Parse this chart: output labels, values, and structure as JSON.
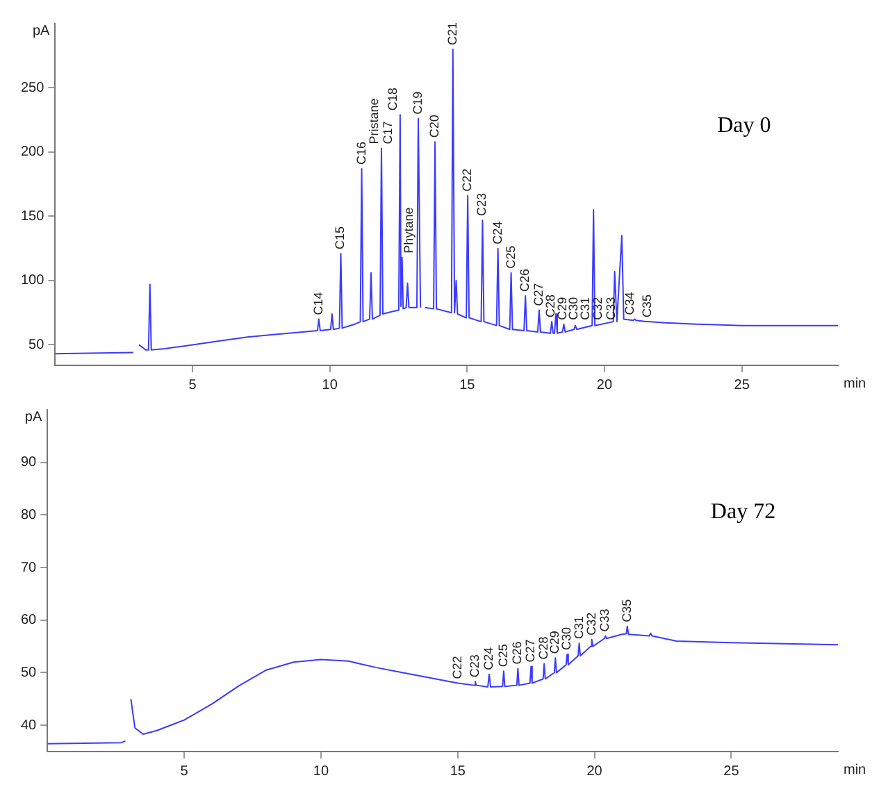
{
  "chart_data": [
    {
      "type": "line",
      "ylabel": "pA",
      "xlabel": "min",
      "xlim": [
        0,
        28.5
      ],
      "ylim": [
        34,
        300
      ],
      "xticks": [
        5,
        10,
        15,
        20,
        25
      ],
      "yticks": [
        50,
        100,
        150,
        200,
        250
      ],
      "grid": false,
      "legend": false,
      "marker": "none",
      "line_style": "solid",
      "series": [
        {
          "color": "#3b3bff",
          "x": [
            0,
            2.85,
            2.95,
            3.05,
            3.3,
            3.4,
            3.45,
            3.5,
            4,
            5,
            6,
            7,
            8,
            9,
            9.55,
            9.6,
            9.65,
            10.03,
            10.08,
            10.13,
            10.35,
            10.4,
            10.45,
            10.9,
            11.11,
            11.16,
            11.21,
            11.45,
            11.5,
            11.55,
            11.83,
            11.88,
            11.93,
            12.3,
            12.51,
            12.56,
            12.59,
            12.63,
            12.67,
            12.78,
            12.83,
            12.88,
            13.17,
            13.22,
            13.3,
            13.4,
            13.46,
            13.78,
            13.83,
            13.88,
            14.43,
            14.48,
            14.54,
            14.6,
            14.65,
            14.97,
            15.02,
            15.07,
            15.51,
            15.56,
            15.61,
            16.07,
            16.12,
            16.17,
            16.55,
            16.6,
            16.65,
            17.07,
            17.12,
            17.17,
            17.57,
            17.62,
            17.67,
            18.03,
            18.08,
            18.13,
            18.18,
            18.23,
            18.28,
            18.47,
            18.52,
            18.57,
            18.89,
            18.94,
            18.99,
            19.55,
            19.6,
            19.65,
            20.32,
            20.37,
            20.45,
            20.63,
            20.7,
            21.05,
            21.1,
            21.15,
            21.5,
            21.55,
            21.6,
            22.3,
            22.35,
            22.4,
            23.35,
            23.4,
            23.45,
            25,
            28.5
          ],
          "values": [
            43,
            44,
            null,
            50,
            46,
            46,
            97,
            46,
            47,
            50,
            53,
            56,
            58,
            60,
            61,
            70,
            61,
            62,
            74,
            62,
            63,
            121,
            63,
            66,
            68,
            187,
            68,
            70,
            106,
            70,
            73,
            203,
            74,
            76,
            77,
            229,
            80,
            118,
            78,
            79,
            98,
            79,
            79,
            226,
            79,
            null,
            79,
            78,
            208,
            78,
            75,
            280,
            75,
            100,
            74,
            71,
            166,
            71,
            68,
            147,
            68,
            65,
            125,
            65,
            62,
            106,
            62,
            61,
            88,
            61,
            60,
            77,
            60,
            59,
            68,
            59,
            59,
            74,
            59,
            60,
            66,
            60,
            62,
            65,
            62,
            65,
            155,
            65,
            68,
            107,
            68,
            135,
            70,
            69,
            70,
            69,
            68,
            68,
            68,
            67,
            67,
            67,
            66,
            66,
            66,
            65,
            65
          ]
        }
      ],
      "annotations": [
        "Day 0",
        {
          "text": "C14",
          "x": 9.6,
          "y": 70
        },
        {
          "text": "C15",
          "x": 10.4,
          "y": 121
        },
        {
          "text": "C16",
          "x": 11.16,
          "y": 187
        },
        {
          "text": "Pristane",
          "x": 11.88,
          "y": 203
        },
        {
          "text": "C17",
          "x": 11.88,
          "y": 203
        },
        {
          "text": "C18",
          "x": 12.56,
          "y": 229
        },
        {
          "text": "Phytane",
          "x": 12.63,
          "y": 118
        },
        {
          "text": "C19",
          "x": 13.22,
          "y": 226
        },
        {
          "text": "C20",
          "x": 13.83,
          "y": 208
        },
        {
          "text": "C21",
          "x": 14.48,
          "y": 280
        },
        {
          "text": "C22",
          "x": 15.02,
          "y": 166
        },
        {
          "text": "C23",
          "x": 15.56,
          "y": 147
        },
        {
          "text": "C24",
          "x": 16.12,
          "y": 125
        },
        {
          "text": "C25",
          "x": 16.6,
          "y": 106
        },
        {
          "text": "C26",
          "x": 17.12,
          "y": 88
        },
        {
          "text": "C27",
          "x": 17.62,
          "y": 77
        },
        {
          "text": "C28",
          "x": 18.06,
          "y": 68
        },
        {
          "text": "C29",
          "x": 18.49,
          "y": 66
        },
        {
          "text": "C30",
          "x": 18.89,
          "y": 66
        },
        {
          "text": "C31",
          "x": 19.33,
          "y": 66
        },
        {
          "text": "C32",
          "x": 19.78,
          "y": 66
        },
        {
          "text": "C33",
          "x": 20.26,
          "y": 66
        },
        {
          "text": "C34",
          "x": 20.94,
          "y": 70
        },
        {
          "text": "C35",
          "x": 21.58,
          "y": 68
        }
      ]
    },
    {
      "type": "line",
      "ylabel": "pA",
      "xlabel": "min",
      "xlim": [
        0,
        28.9
      ],
      "ylim": [
        35,
        100
      ],
      "xticks": [
        5,
        10,
        15,
        20,
        25
      ],
      "yticks": [
        40,
        50,
        60,
        70,
        80,
        90
      ],
      "grid": false,
      "legend": false,
      "marker": "none",
      "line_style": "solid",
      "series": [
        {
          "color": "#3b3bff",
          "x": [
            0,
            2.7,
            2.85,
            2.9,
            2.95,
            3.05,
            3.2,
            3.5,
            4,
            5,
            6,
            7,
            8,
            9,
            10,
            11,
            12,
            13,
            14,
            15,
            15.6,
            15.64,
            15.68,
            16.1,
            16.15,
            16.2,
            16.64,
            16.68,
            16.72,
            17.16,
            17.2,
            17.24,
            17.64,
            17.68,
            17.72,
            18.12,
            18.16,
            18.2,
            18.53,
            18.57,
            18.61,
            18.96,
            19.0,
            19.04,
            19.4,
            19.44,
            19.48,
            19.86,
            19.9,
            19.94,
            20.36,
            20.4,
            20.44,
            21.0,
            21.16,
            21.2,
            21.24,
            22.0,
            22.05,
            22.1,
            23,
            25,
            28.9
          ],
          "values": [
            36.5,
            36.7,
            37,
            null,
            null,
            45,
            39.5,
            38.3,
            39,
            41,
            44,
            47.5,
            50.5,
            52,
            52.5,
            52.2,
            51,
            50,
            49,
            48,
            47.6,
            48.3,
            47.6,
            47.3,
            49.7,
            47.3,
            47.4,
            50.3,
            47.4,
            47.6,
            50.8,
            47.6,
            48,
            51.2,
            48,
            48.8,
            51.7,
            48.8,
            50,
            52.8,
            50,
            51.5,
            53.5,
            51.5,
            53.2,
            55.6,
            53.2,
            55,
            56.3,
            55,
            56.5,
            57,
            56.5,
            57.3,
            57.4,
            58.8,
            57.3,
            57,
            57.5,
            57,
            56,
            55.7,
            55.3
          ]
        }
      ],
      "annotations": [
        "Day 72",
        {
          "text": "C22",
          "x": 15.0,
          "y": 48
        },
        {
          "text": "C23",
          "x": 15.64,
          "y": 48.3
        },
        {
          "text": "C24",
          "x": 16.15,
          "y": 49.7
        },
        {
          "text": "C25",
          "x": 16.68,
          "y": 50.3
        },
        {
          "text": "C26",
          "x": 17.2,
          "y": 50.8
        },
        {
          "text": "C27",
          "x": 17.68,
          "y": 51.2
        },
        {
          "text": "C28",
          "x": 18.16,
          "y": 51.7
        },
        {
          "text": "C29",
          "x": 18.57,
          "y": 52.8
        },
        {
          "text": "C30",
          "x": 19.0,
          "y": 53.5
        },
        {
          "text": "C31",
          "x": 19.44,
          "y": 55.6
        },
        {
          "text": "C32",
          "x": 19.9,
          "y": 56.3
        },
        {
          "text": "C33",
          "x": 20.4,
          "y": 57
        },
        {
          "text": "C35",
          "x": 21.2,
          "y": 58.8
        }
      ]
    }
  ]
}
